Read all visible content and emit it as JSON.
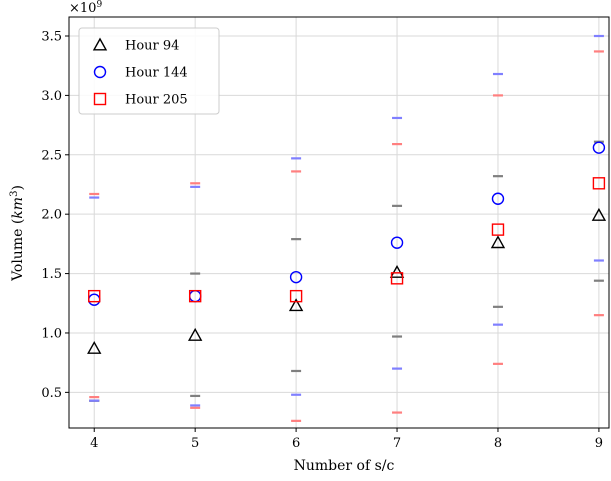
{
  "chart_data": {
    "type": "scatter",
    "title": "",
    "xlabel": "Number of s/c",
    "ylabel_main": "Volume (",
    "ylabel_unit_base": "km",
    "ylabel_unit_exp": "3",
    "ylabel_close": ")",
    "y_offset_label": "×10",
    "y_offset_exp": "9",
    "x": [
      4,
      5,
      6,
      7,
      8,
      9
    ],
    "x_ticks": [
      4,
      5,
      6,
      7,
      8,
      9
    ],
    "x_tick_labels": [
      "4",
      "5",
      "6",
      "7",
      "8",
      "9"
    ],
    "y_ticks": [
      0.5,
      1.0,
      1.5,
      2.0,
      2.5,
      3.0,
      3.5
    ],
    "y_tick_labels": [
      "0.5",
      "1.0",
      "1.5",
      "2.0",
      "2.5",
      "3.0",
      "3.5"
    ],
    "xlim": [
      3.75,
      9.1
    ],
    "ylim": [
      0.2,
      3.66
    ],
    "grid": true,
    "legend_position": "top-left",
    "series": [
      {
        "name": "Hour 94",
        "marker": "triangle",
        "color": "#000000",
        "bound_color": "#7f7f7f",
        "values": [
          0.87,
          0.98,
          1.23,
          1.51,
          1.76,
          1.99
        ],
        "upper": [
          0.43,
          1.5,
          1.79,
          2.07,
          2.32,
          2.61
        ],
        "lower": [
          0.43,
          0.47,
          0.68,
          0.97,
          1.22,
          1.44
        ]
      },
      {
        "name": "Hour 144",
        "marker": "circle",
        "color": "#0000ff",
        "bound_color": "#7f7fff",
        "values": [
          1.28,
          1.31,
          1.47,
          1.76,
          2.13,
          2.56
        ],
        "upper": [
          2.14,
          2.23,
          2.47,
          2.81,
          3.18,
          3.5
        ],
        "lower": [
          0.43,
          0.39,
          0.48,
          0.7,
          1.07,
          1.61
        ]
      },
      {
        "name": "Hour 205",
        "marker": "square",
        "color": "#ff0000",
        "bound_color": "#ff7f7f",
        "values": [
          1.31,
          1.31,
          1.31,
          1.46,
          1.87,
          2.26
        ],
        "upper": [
          2.17,
          2.26,
          2.36,
          2.59,
          3.0,
          3.37
        ],
        "lower": [
          0.46,
          0.37,
          0.26,
          0.33,
          0.74,
          1.15
        ]
      }
    ]
  }
}
